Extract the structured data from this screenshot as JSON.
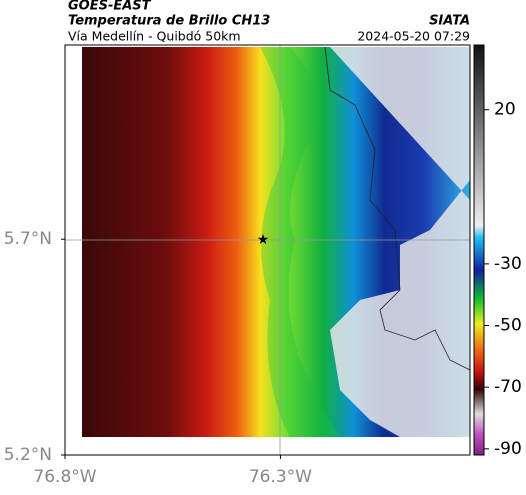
{
  "header": {
    "source": "GOES-EAST",
    "title": "Temperatura de Brillo CH13",
    "subtitle": "Vía Medellín - Quibdó 50km",
    "brand": "SIATA",
    "timestamp": "2024-05-20 07:29"
  },
  "map": {
    "latlim": [
      5.2,
      6.15
    ],
    "lonlim": [
      -76.8,
      -75.86
    ],
    "lat_ticks": [
      {
        "value": 5.7,
        "label": "5.7°N"
      },
      {
        "value": 5.2,
        "label": "5.2°N"
      }
    ],
    "lon_ticks": [
      {
        "value": -76.8,
        "label": "76.8°W"
      },
      {
        "value": -76.3,
        "label": "76.3°W"
      }
    ],
    "colorbar": {
      "lim": [
        41,
        -92
      ],
      "ticks": [
        20,
        -30,
        -50,
        -70,
        -90
      ]
    }
  }
}
